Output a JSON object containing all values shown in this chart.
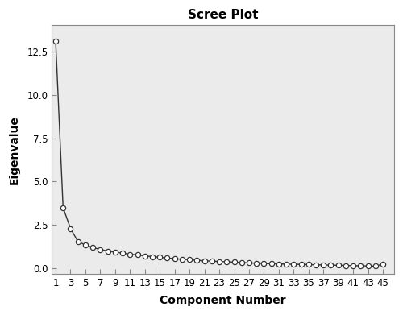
{
  "title": "Scree Plot",
  "xlabel": "Component Number",
  "ylabel": "Eigenvalue",
  "eigenvalues": [
    13.1,
    3.5,
    2.3,
    1.55,
    1.35,
    1.2,
    1.1,
    1.0,
    0.95,
    0.88,
    0.82,
    0.78,
    0.72,
    0.68,
    0.64,
    0.6,
    0.56,
    0.53,
    0.5,
    0.47,
    0.44,
    0.42,
    0.4,
    0.38,
    0.36,
    0.34,
    0.32,
    0.3,
    0.28,
    0.27,
    0.26,
    0.25,
    0.24,
    0.23,
    0.22,
    0.21,
    0.2,
    0.19,
    0.18,
    0.17,
    0.16,
    0.15,
    0.14,
    0.13,
    0.25
  ],
  "xlim": [
    0.5,
    46.5
  ],
  "ylim": [
    -0.3,
    14.0
  ],
  "yticks": [
    0.0,
    2.5,
    5.0,
    7.5,
    10.0,
    12.5
  ],
  "xticks": [
    1,
    3,
    5,
    7,
    9,
    11,
    13,
    15,
    17,
    19,
    21,
    23,
    25,
    27,
    29,
    31,
    33,
    35,
    37,
    39,
    41,
    43,
    45
  ],
  "line_color": "#333333",
  "marker_facecolor": "#ffffff",
  "marker_edgecolor": "#333333",
  "outer_bg": "#ffffff",
  "plot_bg_color": "#ebebeb",
  "spine_color": "#888888",
  "title_fontsize": 11,
  "label_fontsize": 10,
  "tick_fontsize": 8.5
}
